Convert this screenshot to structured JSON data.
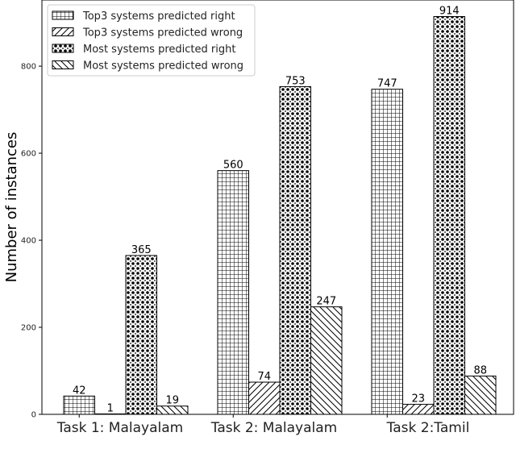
{
  "chart_data": {
    "type": "bar",
    "title": "",
    "xlabel": "",
    "ylabel": "Number of instances",
    "ylim": [
      0,
      952
    ],
    "yticks": [
      0,
      200,
      400,
      600,
      800
    ],
    "categories": [
      "Task 1: Malayalam",
      "Task 2: Malayalam",
      "Task 2:Tamil"
    ],
    "series": [
      {
        "name": "Top3 systems predicted right",
        "pattern": "grid",
        "values": [
          42,
          560,
          747
        ]
      },
      {
        "name": "Top3 systems predicted wrong",
        "pattern": "diag-fwd",
        "values": [
          1,
          74,
          23
        ]
      },
      {
        "name": "Most systems predicted right",
        "pattern": "stars",
        "values": [
          365,
          753,
          914
        ]
      },
      {
        "name": "Most systems predicted wrong",
        "pattern": "diag-back",
        "values": [
          19,
          247,
          88
        ]
      }
    ],
    "legend_position": "top-left",
    "grid": false
  }
}
